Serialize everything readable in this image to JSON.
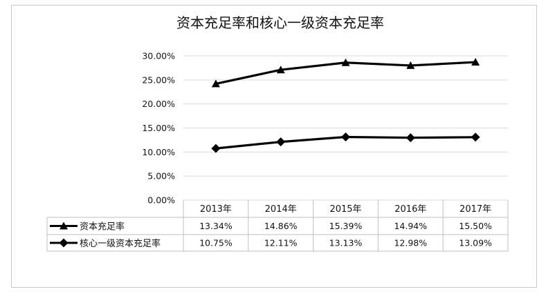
{
  "chart_data": {
    "type": "line",
    "title": "资本充足率和核心一级资本充足率",
    "categories": [
      "2013年",
      "2014年",
      "2015年",
      "2016年",
      "2017年"
    ],
    "y_ticks": [
      "0.00%",
      "5.00%",
      "10.00%",
      "15.00%",
      "20.00%",
      "25.00%",
      "30.00%"
    ],
    "ylim": [
      0,
      30
    ],
    "grid": true,
    "legend": "data-table",
    "series": [
      {
        "name": "资本充足率",
        "marker": "triangle",
        "color": "#000000",
        "plotted": [
          24.2,
          27.1,
          28.6,
          28.0,
          28.7
        ],
        "labels": [
          "13.34%",
          "14.86%",
          "15.39%",
          "14.94%",
          "15.50%"
        ]
      },
      {
        "name": "核心一级资本充足率",
        "marker": "diamond",
        "color": "#000000",
        "plotted": [
          10.75,
          12.11,
          13.13,
          12.98,
          13.09
        ],
        "labels": [
          "10.75%",
          "12.11%",
          "13.13%",
          "12.98%",
          "13.09%"
        ]
      }
    ]
  }
}
